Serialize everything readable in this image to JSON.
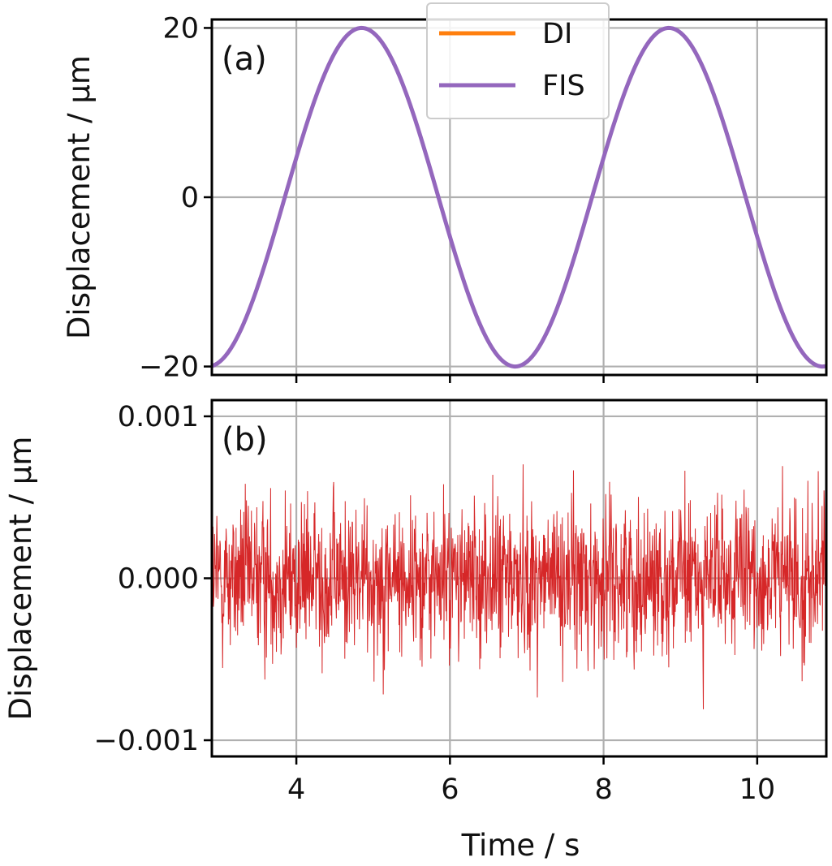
{
  "chart_data": [
    {
      "type": "line",
      "panel_label": "(a)",
      "ylabel": "Displacement / μm",
      "xlim": [
        2.9,
        10.9
      ],
      "ylim": [
        -21,
        21
      ],
      "x_ticks": [
        4,
        6,
        8,
        10
      ],
      "y_ticks": [
        -20,
        0,
        20
      ],
      "y_tick_labels": [
        "−20",
        "0",
        "20"
      ],
      "grid": true,
      "legend_position": "top-center",
      "signal": {
        "amplitude": 20,
        "period": 4.0,
        "peak_times": [
          4.85,
          8.85
        ],
        "trough_times": [
          2.85,
          6.85,
          10.85
        ]
      },
      "series": [
        {
          "name": "DI",
          "color": "#ff7f0e",
          "legend_only": true
        },
        {
          "name": "FIS",
          "color": "#9467bd"
        }
      ]
    },
    {
      "type": "line",
      "panel_label": "(b)",
      "ylabel": "Displacement / μm",
      "xlabel": "Time / s",
      "xlim": [
        2.9,
        10.9
      ],
      "ylim": [
        -0.0011,
        0.0011
      ],
      "x_ticks": [
        4,
        6,
        8,
        10
      ],
      "x_tick_labels": [
        "4",
        "6",
        "8",
        "10"
      ],
      "y_ticks": [
        -0.001,
        0.0,
        0.001
      ],
      "y_tick_labels": [
        "−0.001",
        "0.000",
        "0.001"
      ],
      "grid": true,
      "series": [
        {
          "name": "",
          "color": "#d62728",
          "noise": {
            "std": 0.00024,
            "min": -0.00089,
            "max": 0.00088,
            "n_points": 1600
          }
        }
      ]
    }
  ]
}
